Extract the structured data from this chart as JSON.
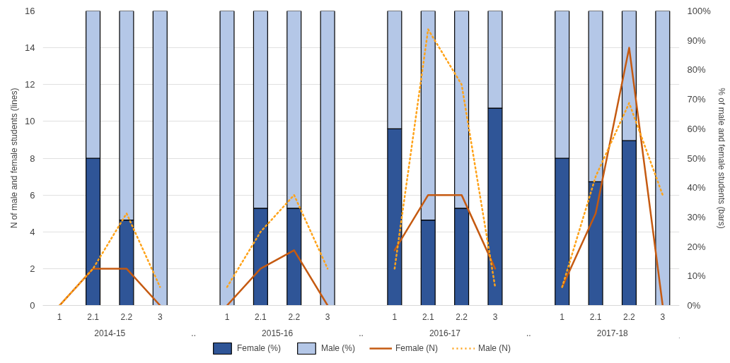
{
  "chart_data": {
    "type": "bar",
    "stacked": true,
    "categories": [
      "1",
      "2.1",
      "2.2",
      "3",
      null,
      "1",
      "2.1",
      "2.2",
      "3",
      null,
      "1",
      "2.1",
      "2.2",
      "3",
      null,
      "1",
      "2.1",
      "2.2",
      "3"
    ],
    "annotations": [
      "2014-15",
      "..",
      "2015-16",
      "..",
      "2016-17",
      "..",
      "2017-18"
    ],
    "ylabel": "N of male and female students (lines)",
    "y2label": "% of male and female students (bars)",
    "ylim": [
      0,
      16
    ],
    "yticks": [
      0,
      2,
      4,
      6,
      8,
      10,
      12,
      14,
      16
    ],
    "y2lim": [
      0,
      100
    ],
    "y2ticks": [
      {
        "value": 0,
        "label": "0%"
      },
      {
        "value": 10,
        "label": "10%"
      },
      {
        "value": 20,
        "label": "20%"
      },
      {
        "value": 30,
        "label": "30%"
      },
      {
        "value": 40,
        "label": "40%"
      },
      {
        "value": 50,
        "label": "50%"
      },
      {
        "value": 60,
        "label": "60%"
      },
      {
        "value": 70,
        "label": "70%"
      },
      {
        "value": 80,
        "label": "80%"
      },
      {
        "value": 90,
        "label": "90%"
      },
      {
        "value": 100,
        "label": "100%"
      }
    ],
    "grid": "y",
    "legend": "bottom",
    "series": [
      {
        "name": "Female (%)",
        "axis": "y2",
        "color": "#2f5597",
        "values": [
          null,
          50,
          29,
          0,
          null,
          0,
          33,
          33,
          0,
          null,
          60,
          29,
          33,
          67,
          null,
          50,
          42,
          56,
          0
        ]
      },
      {
        "name": "Male (%)",
        "axis": "y2",
        "color": "#b4c7e7",
        "values": [
          null,
          50,
          71,
          100,
          null,
          100,
          67,
          67,
          100,
          null,
          40,
          71,
          67,
          33,
          null,
          50,
          58,
          44,
          100
        ]
      },
      {
        "name": "Female (N)",
        "type": "line",
        "line_style": "solid",
        "color": "#c55a11",
        "values": [
          0,
          2,
          2,
          0,
          null,
          0,
          2,
          3,
          0,
          null,
          3,
          6,
          6,
          2,
          null,
          1,
          5,
          14,
          0
        ]
      },
      {
        "name": "Male (N)",
        "type": "line",
        "line_style": "dotted",
        "color": "#ffa31a",
        "values": [
          0,
          2,
          5,
          1,
          null,
          1,
          4,
          6,
          2,
          null,
          2,
          15,
          12,
          1,
          null,
          1,
          7,
          11,
          6
        ]
      }
    ]
  }
}
